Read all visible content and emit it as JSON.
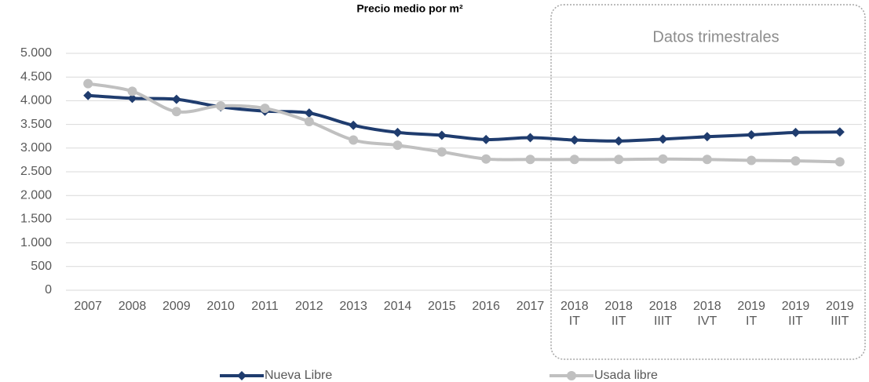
{
  "chart_data": {
    "type": "line",
    "title": "Precio medio por m²",
    "annotation": "Datos trimestrales",
    "categories": [
      "2007",
      "2008",
      "2009",
      "2010",
      "2011",
      "2012",
      "2013",
      "2014",
      "2015",
      "2016",
      "2017",
      "2018 IT",
      "2018 IIT",
      "2018 IIIT",
      "2018 IVT",
      "2019 IT",
      "2019 IIT",
      "2019 IIIT"
    ],
    "series": [
      {
        "name": "Nueva Libre",
        "color": "#1f3c6e",
        "marker": "diamond",
        "values": [
          4110,
          4050,
          4030,
          3870,
          3780,
          3740,
          3480,
          3330,
          3270,
          3180,
          3220,
          3170,
          3150,
          3190,
          3240,
          3280,
          3330,
          3340
        ]
      },
      {
        "name": "Usada libre",
        "color": "#c0c0c0",
        "marker": "circle",
        "values": [
          4360,
          4200,
          3770,
          3890,
          3840,
          3560,
          3170,
          3060,
          2920,
          2770,
          2760,
          2760,
          2760,
          2770,
          2760,
          2740,
          2730,
          2710
        ]
      }
    ],
    "ylim": [
      0,
      5000
    ],
    "yticks": [
      0,
      500,
      {
        "value": 1000,
        "label": "1.000"
      },
      {
        "value": 1500,
        "label": "1.500"
      },
      {
        "value": 2000,
        "label": "2.000"
      },
      {
        "value": 2500,
        "label": "2.500"
      },
      {
        "value": 3000,
        "label": "3.000"
      },
      {
        "value": 3500,
        "label": "3.500"
      },
      {
        "value": 4000,
        "label": "4.000"
      },
      {
        "value": 4500,
        "label": "4.500"
      },
      {
        "value": 5000,
        "label": "5.000"
      }
    ],
    "grid": true,
    "legend": "bottom"
  }
}
